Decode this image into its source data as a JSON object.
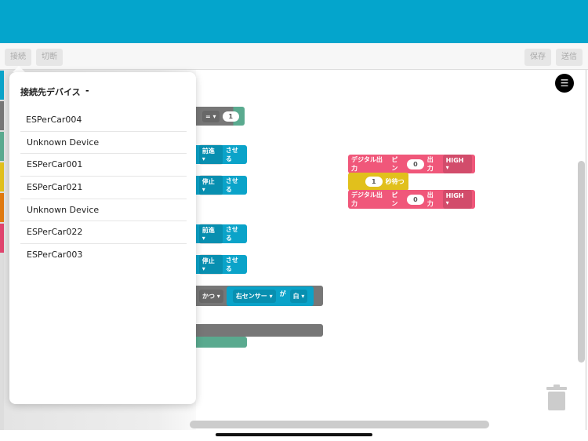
{
  "toolbar": {
    "connect": "接続",
    "disconnect": "切断",
    "save": "保存",
    "send": "送信"
  },
  "categories": [
    "#0aa3c9",
    "#777777",
    "#5aaa8f",
    "#e1c01c",
    "#e07a10",
    "#e0446e"
  ],
  "popover": {
    "title": "接続先デバイス",
    "status": "-",
    "devices": [
      "ESPerCar004",
      "Unknown Device",
      "ESPerCar001",
      "ESPerCar021",
      "Unknown Device",
      "ESPerCar022",
      "ESPerCar003"
    ]
  },
  "flyout": {
    "compare_op": "=",
    "compare_value": "1",
    "forward": "前進",
    "stop": "停止",
    "make": "させる",
    "and": "かつ",
    "right_sensor": "右センサー",
    "ga": "が",
    "white": "白"
  },
  "workspace": {
    "digital_out": "デジタル出力",
    "pin": "ピン",
    "pin_value": "0",
    "output": "出力",
    "level": "HIGH",
    "wait_value": "1",
    "wait_label": "秒待つ"
  },
  "icons": {
    "menu": "menu-icon",
    "trash": "trash-icon"
  }
}
